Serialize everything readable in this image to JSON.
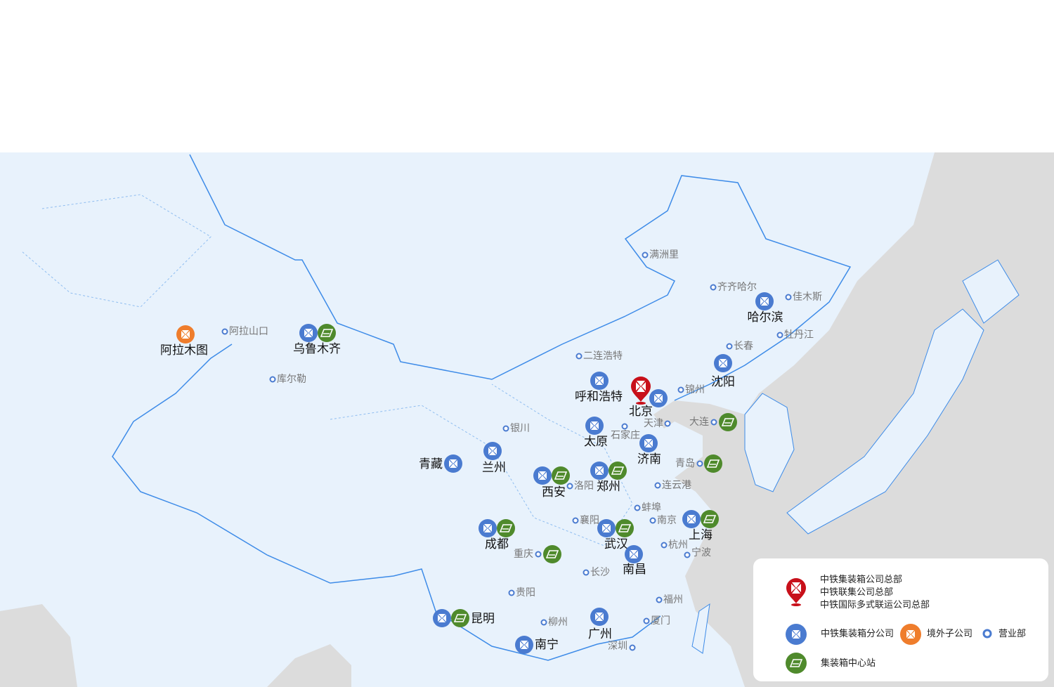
{
  "colors": {
    "branch": "#4a7bd0",
    "station": "#4f8a2c",
    "overseas": "#ef7d2c",
    "headquarters": "#c8101a",
    "land": "#e8f2fc",
    "sea": "#dcdcdc",
    "border": "#3d8be8"
  },
  "headquarters": {
    "name": "北京",
    "icon": "red-pin-icon"
  },
  "branches": [
    {
      "name": "哈尔滨",
      "station": false
    },
    {
      "name": "沈阳",
      "station": false
    },
    {
      "name": "呼和浩特",
      "station": false
    },
    {
      "name": "太原",
      "station": false
    },
    {
      "name": "济南",
      "station": false
    },
    {
      "name": "青藏",
      "station": false
    },
    {
      "name": "兰州",
      "station": false
    },
    {
      "name": "西安",
      "station": true
    },
    {
      "name": "郑州",
      "station": true
    },
    {
      "name": "成都",
      "station": true
    },
    {
      "name": "武汉",
      "station": true
    },
    {
      "name": "上海",
      "station": true
    },
    {
      "name": "南昌",
      "station": false
    },
    {
      "name": "昆明",
      "station": true
    },
    {
      "name": "南宁",
      "station": false
    },
    {
      "name": "广州",
      "station": false
    },
    {
      "name": "乌鲁木齐",
      "station": true
    }
  ],
  "overseas": [
    {
      "name": "阿拉木图"
    }
  ],
  "stations_with_office": [
    {
      "name": "重庆"
    },
    {
      "name": "大连"
    },
    {
      "name": "青岛"
    }
  ],
  "sales_offices": [
    {
      "name": "阿拉山口"
    },
    {
      "name": "库尔勒"
    },
    {
      "name": "满洲里"
    },
    {
      "name": "齐齐哈尔"
    },
    {
      "name": "佳木斯"
    },
    {
      "name": "牡丹江"
    },
    {
      "name": "长春"
    },
    {
      "name": "二连浩特"
    },
    {
      "name": "锦州"
    },
    {
      "name": "银川"
    },
    {
      "name": "天津"
    },
    {
      "name": "石家庄"
    },
    {
      "name": "洛阳"
    },
    {
      "name": "连云港"
    },
    {
      "name": "蚌埠"
    },
    {
      "name": "襄阳"
    },
    {
      "name": "南京"
    },
    {
      "name": "杭州"
    },
    {
      "name": "宁波"
    },
    {
      "name": "长沙"
    },
    {
      "name": "贵阳"
    },
    {
      "name": "福州"
    },
    {
      "name": "柳州"
    },
    {
      "name": "厦门"
    },
    {
      "name": "深圳"
    }
  ],
  "legend": {
    "hq_lines": [
      "中铁集装箱公司总部",
      "中铁联集公司总部",
      "中铁国际多式联运公司总部"
    ],
    "branch": "中铁集装箱分公司",
    "overseas": "境外子公司",
    "office": "营业部",
    "station": "集装箱中心站"
  }
}
